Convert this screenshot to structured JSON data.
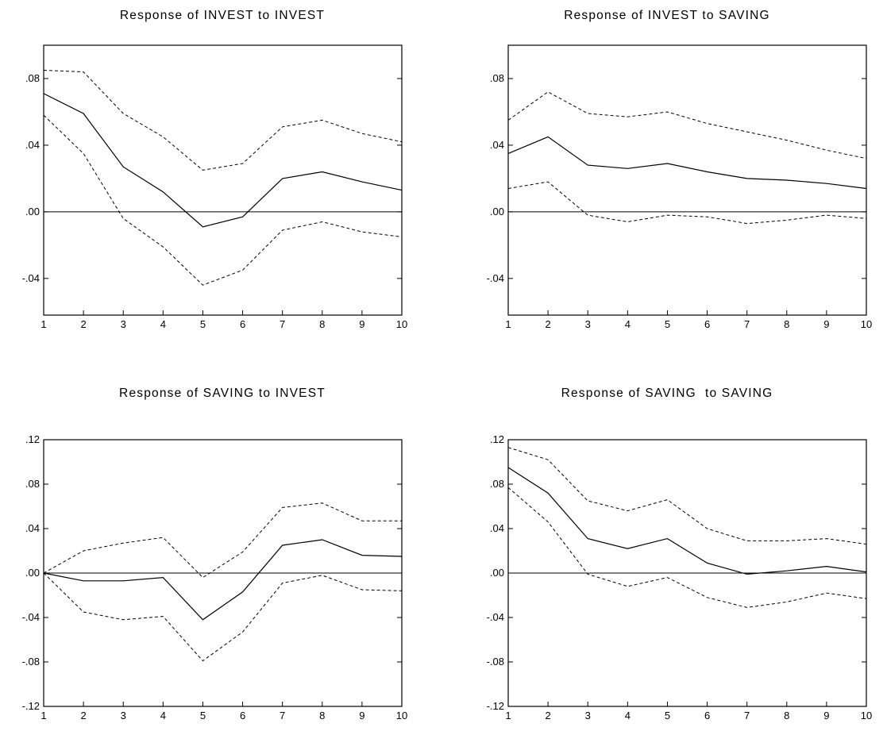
{
  "chart_data": [
    {
      "type": "line",
      "title": "Response of INVEST to INVEST",
      "x": [
        1,
        2,
        3,
        4,
        5,
        6,
        7,
        8,
        9,
        10
      ],
      "ylim": [
        -0.062,
        0.1
      ],
      "yticks": [
        -0.04,
        0.0,
        0.04,
        0.08
      ],
      "ytick_labels": [
        "-.04",
        ".00",
        ".04",
        ".08"
      ],
      "grid": false,
      "zero_line": true,
      "series": [
        {
          "role": "response",
          "style": "solid",
          "values": [
            0.071,
            0.059,
            0.027,
            0.012,
            -0.009,
            -0.003,
            0.02,
            0.024,
            0.018,
            0.013
          ]
        },
        {
          "role": "upper",
          "style": "dashed",
          "values": [
            0.085,
            0.084,
            0.059,
            0.045,
            0.025,
            0.029,
            0.051,
            0.055,
            0.047,
            0.042
          ]
        },
        {
          "role": "lower",
          "style": "dashed",
          "values": [
            0.058,
            0.035,
            -0.004,
            -0.021,
            -0.044,
            -0.035,
            -0.011,
            -0.006,
            -0.012,
            -0.015
          ]
        }
      ]
    },
    {
      "type": "line",
      "title": "Response of INVEST to SAVING",
      "x": [
        1,
        2,
        3,
        4,
        5,
        6,
        7,
        8,
        9,
        10
      ],
      "ylim": [
        -0.062,
        0.1
      ],
      "yticks": [
        -0.04,
        0.0,
        0.04,
        0.08
      ],
      "ytick_labels": [
        "-.04",
        ".00",
        ".04",
        ".08"
      ],
      "grid": false,
      "zero_line": true,
      "series": [
        {
          "role": "response",
          "style": "solid",
          "values": [
            0.035,
            0.045,
            0.028,
            0.026,
            0.029,
            0.024,
            0.02,
            0.019,
            0.017,
            0.014
          ]
        },
        {
          "role": "upper",
          "style": "dashed",
          "values": [
            0.055,
            0.072,
            0.059,
            0.057,
            0.06,
            0.053,
            0.048,
            0.043,
            0.037,
            0.032
          ]
        },
        {
          "role": "lower",
          "style": "dashed",
          "values": [
            0.014,
            0.018,
            -0.002,
            -0.006,
            -0.002,
            -0.003,
            -0.007,
            -0.005,
            -0.002,
            -0.004
          ]
        }
      ]
    },
    {
      "type": "line",
      "title": "Response of SAVING to INVEST",
      "x": [
        1,
        2,
        3,
        4,
        5,
        6,
        7,
        8,
        9,
        10
      ],
      "ylim": [
        -0.12,
        0.12
      ],
      "yticks": [
        -0.12,
        -0.08,
        -0.04,
        0.0,
        0.04,
        0.08,
        0.12
      ],
      "ytick_labels": [
        "-.12",
        "-.08",
        "-.04",
        ".00",
        ".04",
        ".08",
        ".12"
      ],
      "grid": false,
      "zero_line": true,
      "series": [
        {
          "role": "response",
          "style": "solid",
          "values": [
            0.0,
            -0.007,
            -0.007,
            -0.004,
            -0.042,
            -0.017,
            0.025,
            0.03,
            0.016,
            0.015
          ]
        },
        {
          "role": "upper",
          "style": "dashed",
          "values": [
            0.0,
            0.02,
            0.027,
            0.032,
            -0.004,
            0.019,
            0.059,
            0.063,
            0.047,
            0.047
          ]
        },
        {
          "role": "lower",
          "style": "dashed",
          "values": [
            0.0,
            -0.035,
            -0.042,
            -0.039,
            -0.079,
            -0.053,
            -0.009,
            -0.002,
            -0.015,
            -0.016
          ]
        }
      ]
    },
    {
      "type": "line",
      "title": "Response of SAVING  to SAVING",
      "x": [
        1,
        2,
        3,
        4,
        5,
        6,
        7,
        8,
        9,
        10
      ],
      "ylim": [
        -0.12,
        0.12
      ],
      "yticks": [
        -0.12,
        -0.08,
        -0.04,
        0.0,
        0.04,
        0.08,
        0.12
      ],
      "ytick_labels": [
        "-.12",
        "-.08",
        "-.04",
        ".00",
        ".04",
        ".08",
        ".12"
      ],
      "grid": false,
      "zero_line": true,
      "series": [
        {
          "role": "response",
          "style": "solid",
          "values": [
            0.095,
            0.072,
            0.031,
            0.022,
            0.031,
            0.009,
            -0.001,
            0.002,
            0.006,
            0.001
          ]
        },
        {
          "role": "upper",
          "style": "dashed",
          "values": [
            0.113,
            0.102,
            0.065,
            0.056,
            0.066,
            0.04,
            0.029,
            0.029,
            0.031,
            0.026
          ]
        },
        {
          "role": "lower",
          "style": "dashed",
          "values": [
            0.077,
            0.046,
            -0.001,
            -0.012,
            -0.004,
            -0.022,
            -0.031,
            -0.026,
            -0.018,
            -0.023
          ]
        }
      ]
    }
  ]
}
